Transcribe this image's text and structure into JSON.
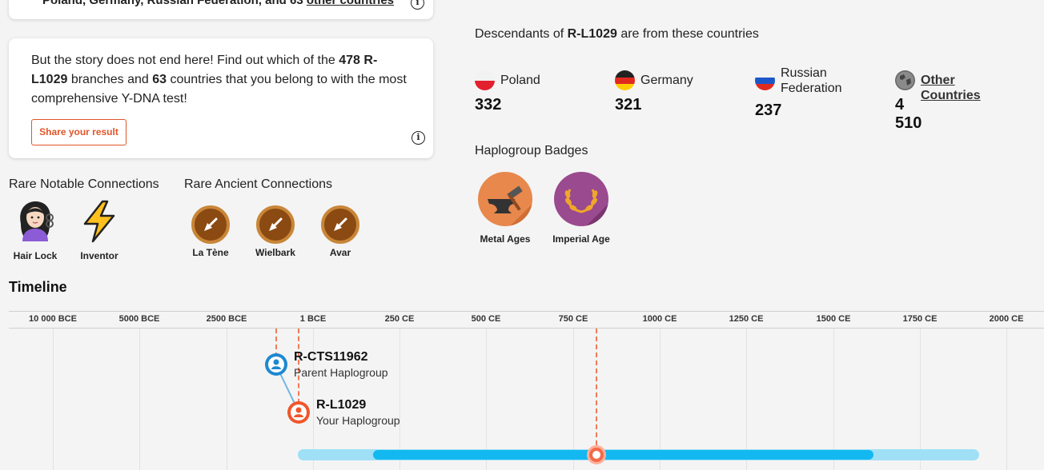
{
  "top_card": {
    "text_a": "Poland, Germany, Russian Federation,",
    "text_b": " and 63 ",
    "text_link": "other countries"
  },
  "story": {
    "p1": "But the story does not end here! Find out which of the ",
    "branches": "478",
    "p2": " ",
    "haplogroup": "R-L1029",
    "p3": " branches and ",
    "countries": "63",
    "p4": " countries that you belong to with the most comprehensive Y-DNA test!",
    "share_label": "Share your result"
  },
  "rare_notable": {
    "title": "Rare Notable Connections",
    "items": [
      {
        "label": "Hair Lock",
        "icon": "hair-lock-woman-icon"
      },
      {
        "label": "Inventor",
        "icon": "lightning-icon"
      }
    ]
  },
  "rare_ancient": {
    "title": "Rare Ancient Connections",
    "items": [
      {
        "label": "La Tène",
        "icon": "trowel-icon"
      },
      {
        "label": "Wielbark",
        "icon": "trowel-icon"
      },
      {
        "label": "Avar",
        "icon": "trowel-icon"
      }
    ]
  },
  "descendants": {
    "title_pre": "Descendants of ",
    "haplogroup": "R-L1029",
    "title_post": " are from these countries",
    "countries": [
      {
        "name": "Poland",
        "count": "332",
        "icon": "flag-poland-icon"
      },
      {
        "name": "Germany",
        "count": "321",
        "icon": "flag-germany-icon"
      },
      {
        "name": "Russian Federation",
        "name_l1": "Russian",
        "name_l2": "Federation",
        "count": "237",
        "icon": "flag-russia-icon"
      },
      {
        "name": "Other Countries",
        "count": "4 510",
        "icon": "globe-icon"
      }
    ]
  },
  "haplogroup_badges": {
    "title": "Haplogroup Badges",
    "items": [
      {
        "label": "Metal Ages",
        "icon": "anvil-hammer-icon",
        "color": "#e8884c"
      },
      {
        "label": "Imperial Age",
        "icon": "laurel-wreath-icon",
        "color": "#9a4a8e"
      }
    ]
  },
  "timeline": {
    "title": "Timeline",
    "ticks": [
      "10 000 BCE",
      "5000 BCE",
      "2500 BCE",
      "1 BCE",
      "250 CE",
      "500 CE",
      "750 CE",
      "1000 CE",
      "1250 CE",
      "1500 CE",
      "1750 CE",
      "2000 CE"
    ],
    "parent": {
      "name": "R-CTS11962",
      "sub": "Parent Haplogroup",
      "color": "#1e88d0"
    },
    "yours": {
      "name": "R-L1029",
      "sub": "Your Haplogroup",
      "color": "#f0562a"
    }
  }
}
